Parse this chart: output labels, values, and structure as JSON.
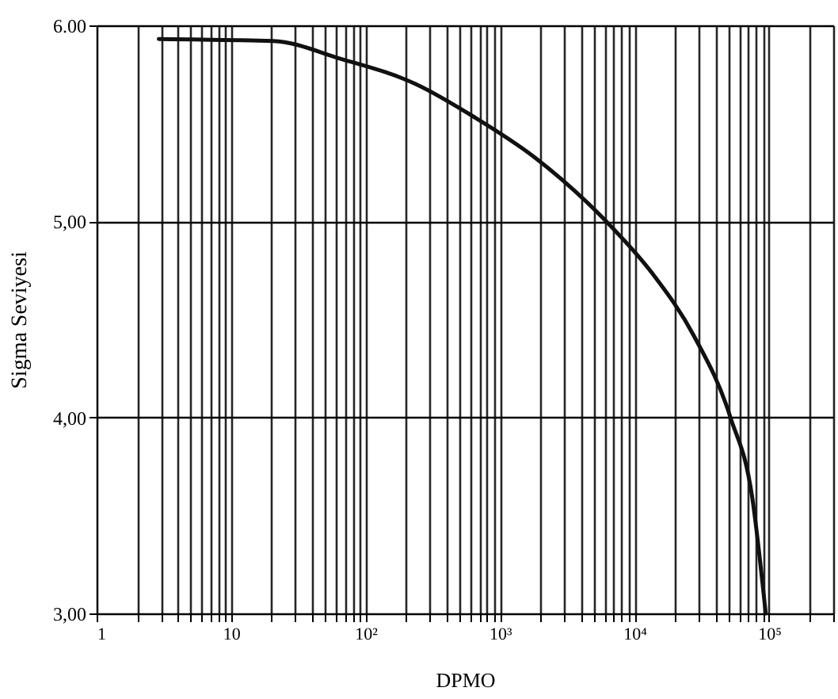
{
  "chart_data": {
    "type": "line",
    "xlabel": "DPMO",
    "ylabel": "Sigma  Seviyesi",
    "log": "x",
    "grid": true,
    "marker": "none",
    "line_style": "solid",
    "x": [
      2.9,
      20.5,
      65,
      237,
      650,
      1780,
      6150,
      13700,
      27400,
      51600,
      75000,
      94400
    ],
    "series": [
      {
        "color": "#111111",
        "values": [
          5.93,
          5.92,
          5.83,
          5.7,
          5.53,
          5.33,
          5.0,
          4.73,
          4.42,
          4.0,
          3.59,
          3.0
        ]
      }
    ],
    "xlim": [
      1,
      300000
    ],
    "xticks": [
      1,
      {
        "value": 2,
        "label": null
      },
      {
        "value": 3,
        "label": null
      },
      {
        "value": 4,
        "label": null
      },
      {
        "value": 5,
        "label": null
      },
      {
        "value": 6,
        "label": null
      },
      {
        "value": 7,
        "label": null
      },
      {
        "value": 8,
        "label": null
      },
      {
        "value": 9,
        "label": null
      },
      10,
      {
        "value": 20,
        "label": null
      },
      {
        "value": 30,
        "label": null
      },
      {
        "value": 40,
        "label": null
      },
      {
        "value": 50,
        "label": null
      },
      {
        "value": 60,
        "label": null
      },
      {
        "value": 70,
        "label": null
      },
      {
        "value": 80,
        "label": null
      },
      {
        "value": 90,
        "label": null
      },
      {
        "value": 100,
        "label": "10²"
      },
      {
        "value": 200,
        "label": null
      },
      {
        "value": 300,
        "label": null
      },
      {
        "value": 400,
        "label": null
      },
      {
        "value": 500,
        "label": null
      },
      {
        "value": 600,
        "label": null
      },
      {
        "value": 700,
        "label": null
      },
      {
        "value": 800,
        "label": null
      },
      {
        "value": 900,
        "label": null
      },
      {
        "value": 1000,
        "label": "10³"
      },
      {
        "value": 2000,
        "label": null
      },
      {
        "value": 3000,
        "label": null
      },
      {
        "value": 4000,
        "label": null
      },
      {
        "value": 5000,
        "label": null
      },
      {
        "value": 6000,
        "label": null
      },
      {
        "value": 7000,
        "label": null
      },
      {
        "value": 8000,
        "label": null
      },
      {
        "value": 9000,
        "label": null
      },
      {
        "value": 10000,
        "label": "10⁴"
      },
      {
        "value": 20000,
        "label": null
      },
      {
        "value": 30000,
        "label": null
      },
      {
        "value": 40000,
        "label": null
      },
      {
        "value": 50000,
        "label": null
      },
      {
        "value": 60000,
        "label": null
      },
      {
        "value": 70000,
        "label": null
      },
      {
        "value": 80000,
        "label": null
      },
      {
        "value": 90000,
        "label": null
      },
      {
        "value": 100000,
        "label": "10⁵"
      },
      {
        "value": 200000,
        "label": null
      },
      {
        "value": 300000,
        "label": null
      }
    ],
    "ylim": [
      3,
      6
    ],
    "yticks": [
      {
        "value": 3,
        "label": "3,00"
      },
      {
        "value": 4,
        "label": "4,00"
      },
      {
        "value": 5,
        "label": "5,00"
      },
      {
        "value": 6,
        "label": "6.00"
      }
    ]
  }
}
